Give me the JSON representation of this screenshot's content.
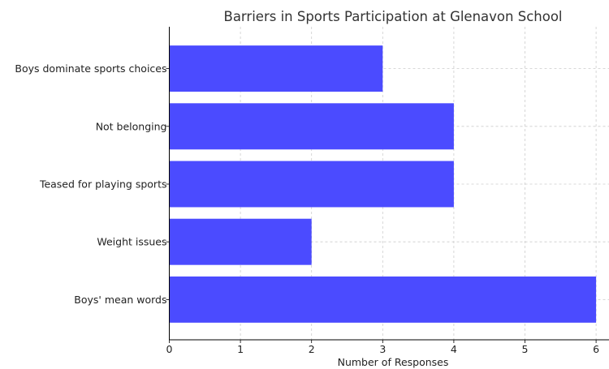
{
  "chart_data": {
    "type": "bar",
    "orientation": "horizontal",
    "title": "Barriers in Sports Participation at Glenavon School",
    "xlabel": "Number of Responses",
    "ylabel": "",
    "categories": [
      "Boys dominate sports choices",
      "Not belonging",
      "Teased for playing sports",
      "Weight issues",
      "Boys' mean words"
    ],
    "values": [
      3,
      4,
      4,
      2,
      6
    ],
    "xlim": [
      0,
      6.2
    ],
    "xticks": [
      0,
      1,
      2,
      3,
      4,
      5,
      6
    ],
    "grid": true,
    "legend": "none",
    "bar_color": "#4b4bff"
  }
}
